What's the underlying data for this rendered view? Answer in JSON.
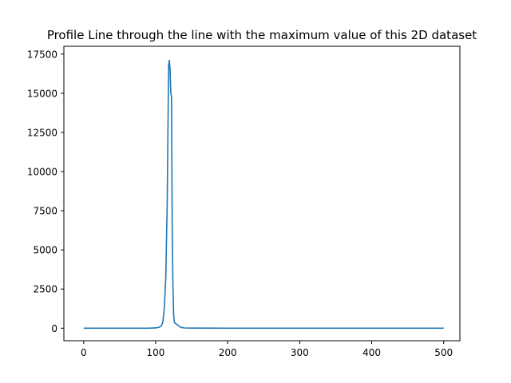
{
  "chart_data": {
    "type": "line",
    "title": "Profile Line through the line with the maximum value of this 2D dataset",
    "xlabel": "",
    "ylabel": "",
    "xlim": [
      -27.5,
      522.5
    ],
    "ylim": [
      -800,
      18000
    ],
    "xticks": [
      0,
      100,
      200,
      300,
      400,
      500
    ],
    "yticks": [
      0,
      2500,
      5000,
      7500,
      10000,
      12500,
      15000,
      17500
    ],
    "grid": false,
    "series": [
      {
        "color": "#1f77b4",
        "x": [
          0,
          50,
          90,
          100,
          105,
          108,
          110,
          112,
          114,
          116,
          117,
          118,
          119,
          120,
          121,
          122,
          123,
          124,
          125,
          126,
          128,
          130,
          132,
          134,
          136,
          140,
          150,
          200,
          300,
          400,
          500
        ],
        "y": [
          0,
          0,
          0,
          20,
          60,
          150,
          400,
          1300,
          3200,
          8000,
          12500,
          16800,
          17100,
          16500,
          15000,
          14800,
          6000,
          2600,
          800,
          350,
          280,
          220,
          150,
          80,
          40,
          15,
          5,
          0,
          0,
          0,
          0
        ]
      }
    ]
  }
}
